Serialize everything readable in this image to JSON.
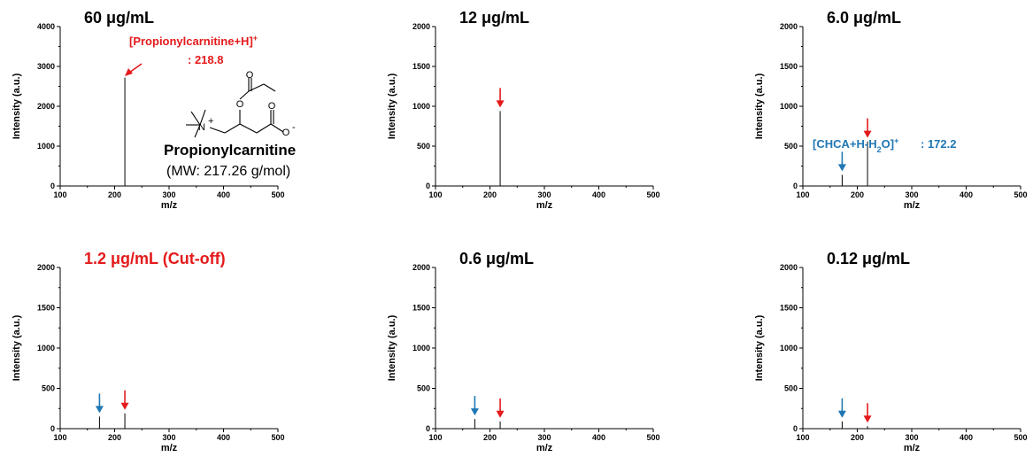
{
  "colors": {
    "red": "#e41a1c",
    "blue": "#1f77b4",
    "axis": "#000000",
    "peak": "#000000"
  },
  "chart_data": [
    {
      "type": "bar",
      "title": "60 μg/mL",
      "title_color": "#000000",
      "xlabel": "m/z",
      "ylabel": "Intensity (a.u.)",
      "xlim": [
        100,
        500
      ],
      "ylim": [
        0,
        4000
      ],
      "xticks": [
        100,
        200,
        300,
        400,
        500
      ],
      "yticks": [
        0,
        1000,
        2000,
        3000,
        4000
      ],
      "peaks": [
        {
          "mz": 218.8,
          "intensity": 2720,
          "arrow": "red"
        }
      ],
      "annotation": {
        "text": "[Propionylcarnitine+H]",
        "sup": "+",
        "line2": ": 218.8",
        "color": "#e41a1c"
      },
      "structure": {
        "name": "Propionylcarnitine",
        "mw": "(MW: 217.26 g/mol)",
        "atoms": {
          "n": "N",
          "n_charge": "+",
          "o": "O",
          "o_charge": "-"
        }
      }
    },
    {
      "type": "bar",
      "title": "12 μg/mL",
      "title_color": "#000000",
      "xlabel": "m/z",
      "ylabel": "Intensity (a.u.)",
      "xlim": [
        100,
        500
      ],
      "ylim": [
        0,
        2000
      ],
      "xticks": [
        100,
        200,
        300,
        400,
        500
      ],
      "yticks": [
        0,
        500,
        1000,
        1500,
        2000
      ],
      "peaks": [
        {
          "mz": 218.8,
          "intensity": 940,
          "arrow": "red"
        }
      ]
    },
    {
      "type": "bar",
      "title": "6.0 μg/mL",
      "title_color": "#000000",
      "xlabel": "m/z",
      "ylabel": "Intensity (a.u.)",
      "xlim": [
        100,
        500
      ],
      "ylim": [
        0,
        2000
      ],
      "xticks": [
        100,
        200,
        300,
        400,
        500
      ],
      "yticks": [
        0,
        500,
        1000,
        1500,
        2000
      ],
      "peaks": [
        {
          "mz": 172.2,
          "intensity": 140,
          "arrow": "blue"
        },
        {
          "mz": 218.8,
          "intensity": 560,
          "arrow": "red"
        }
      ],
      "annotation": {
        "text": "[CHCA+H-H",
        "sub": "2",
        "text2": "O]",
        "sup": "+",
        "line2": ": 172.2",
        "color": "#1f77b4"
      }
    },
    {
      "type": "bar",
      "title": "1.2 μg/mL  (Cut-off)",
      "title_color": "#e41a1c",
      "xlabel": "m/z",
      "ylabel": "Intensity (a.u.)",
      "xlim": [
        100,
        500
      ],
      "ylim": [
        0,
        2000
      ],
      "xticks": [
        100,
        200,
        300,
        400,
        500
      ],
      "yticks": [
        0,
        500,
        1000,
        1500,
        2000
      ],
      "peaks": [
        {
          "mz": 172.2,
          "intensity": 150,
          "arrow": "blue"
        },
        {
          "mz": 218.8,
          "intensity": 190,
          "arrow": "red"
        }
      ]
    },
    {
      "type": "bar",
      "title": "0.6 μg/mL",
      "title_color": "#000000",
      "xlabel": "m/z",
      "ylabel": "Intensity (a.u.)",
      "xlim": [
        100,
        500
      ],
      "ylim": [
        0,
        2000
      ],
      "xticks": [
        100,
        200,
        300,
        400,
        500
      ],
      "yticks": [
        0,
        500,
        1000,
        1500,
        2000
      ],
      "peaks": [
        {
          "mz": 172.2,
          "intensity": 120,
          "arrow": "blue"
        },
        {
          "mz": 218.8,
          "intensity": 90,
          "arrow": "red"
        }
      ]
    },
    {
      "type": "bar",
      "title": "0.12 μg/mL",
      "title_color": "#000000",
      "xlabel": "m/z",
      "ylabel": "Intensity (a.u.)",
      "xlim": [
        100,
        500
      ],
      "ylim": [
        0,
        2000
      ],
      "xticks": [
        100,
        200,
        300,
        400,
        500
      ],
      "yticks": [
        0,
        500,
        1000,
        1500,
        2000
      ],
      "peaks": [
        {
          "mz": 172.2,
          "intensity": 90,
          "arrow": "blue"
        },
        {
          "mz": 218.8,
          "intensity": 30,
          "arrow": "red"
        }
      ]
    }
  ]
}
